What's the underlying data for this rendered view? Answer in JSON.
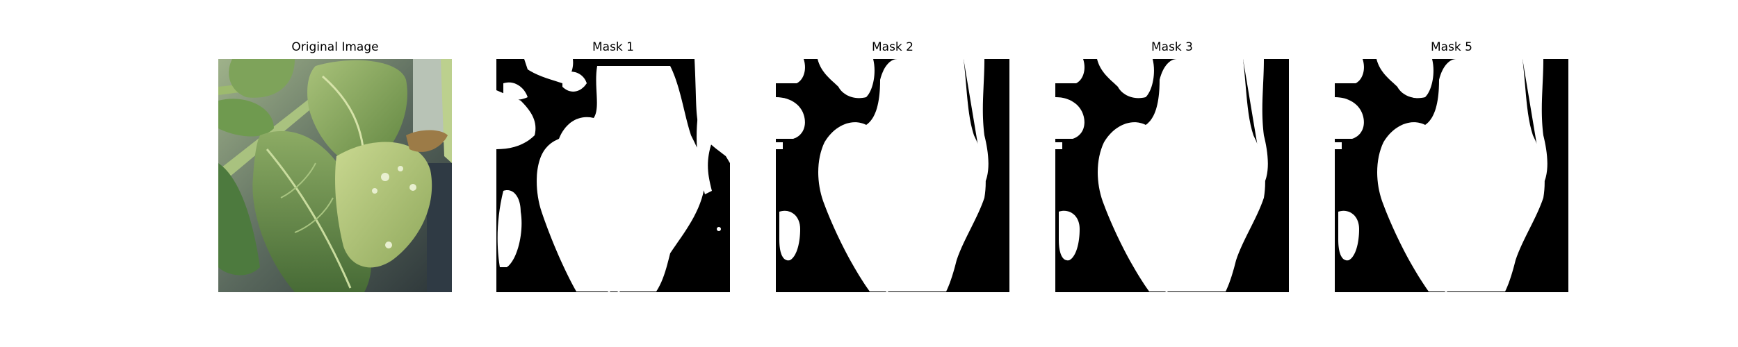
{
  "figure": {
    "panels": [
      {
        "title": "Original Image",
        "kind": "photo",
        "subject": "leaf-photo"
      },
      {
        "title": "Mask 1",
        "kind": "mask",
        "variant": 1
      },
      {
        "title": "Mask 2",
        "kind": "mask",
        "variant": 2
      },
      {
        "title": "Mask 3",
        "kind": "mask",
        "variant": 3
      },
      {
        "title": "Mask 5",
        "kind": "mask",
        "variant": 5
      }
    ]
  },
  "colors": {
    "mask_foreground": "#ffffff",
    "mask_background": "#000000",
    "leaf_light": "#b9cf86",
    "leaf_mid": "#8eaa5f",
    "leaf_dark": "#55783c",
    "background_dark": "#39423f"
  }
}
